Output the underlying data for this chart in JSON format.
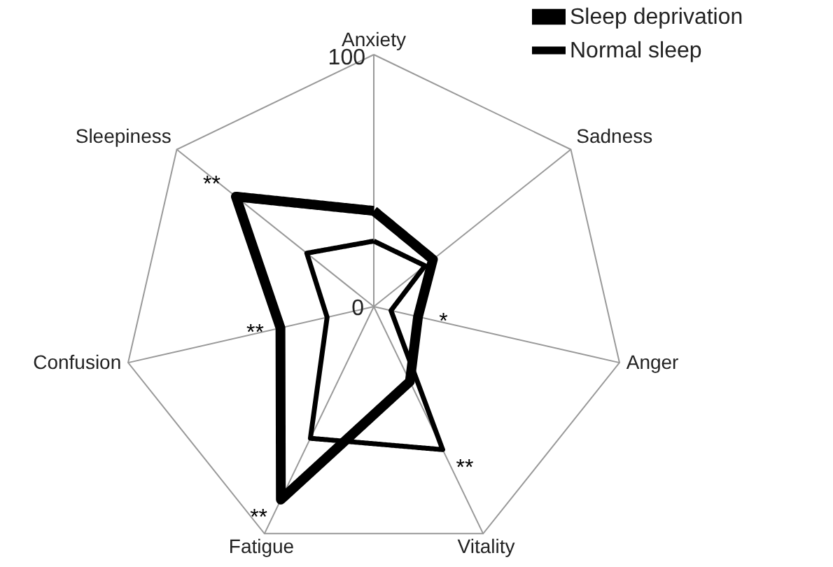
{
  "chart_data": {
    "type": "radar",
    "categories": [
      "Anxiety",
      "Sadness",
      "Anger",
      "Vitality",
      "Fatigue",
      "Confusion",
      "Sleepiness"
    ],
    "series": [
      {
        "name": "Sleep deprivation",
        "color": "#000000",
        "values": [
          38,
          30,
          18,
          33,
          85,
          38,
          70
        ]
      },
      {
        "name": "Normal sleep",
        "color": "#000000",
        "values": [
          26,
          26,
          7,
          63,
          58,
          19,
          34
        ]
      }
    ],
    "ylim": [
      0,
      100
    ],
    "yticks": [
      0,
      100
    ],
    "grid": true,
    "legend": "top right",
    "marker": "none",
    "line_style": "solid",
    "annotations": [
      {
        "text": "**",
        "x": "Sleepiness"
      },
      {
        "text": "*",
        "x": "Anger"
      },
      {
        "text": "**",
        "x": "Vitality"
      },
      {
        "text": "**",
        "x": "Fatigue"
      },
      {
        "text": "**",
        "x": "Confusion"
      }
    ]
  }
}
